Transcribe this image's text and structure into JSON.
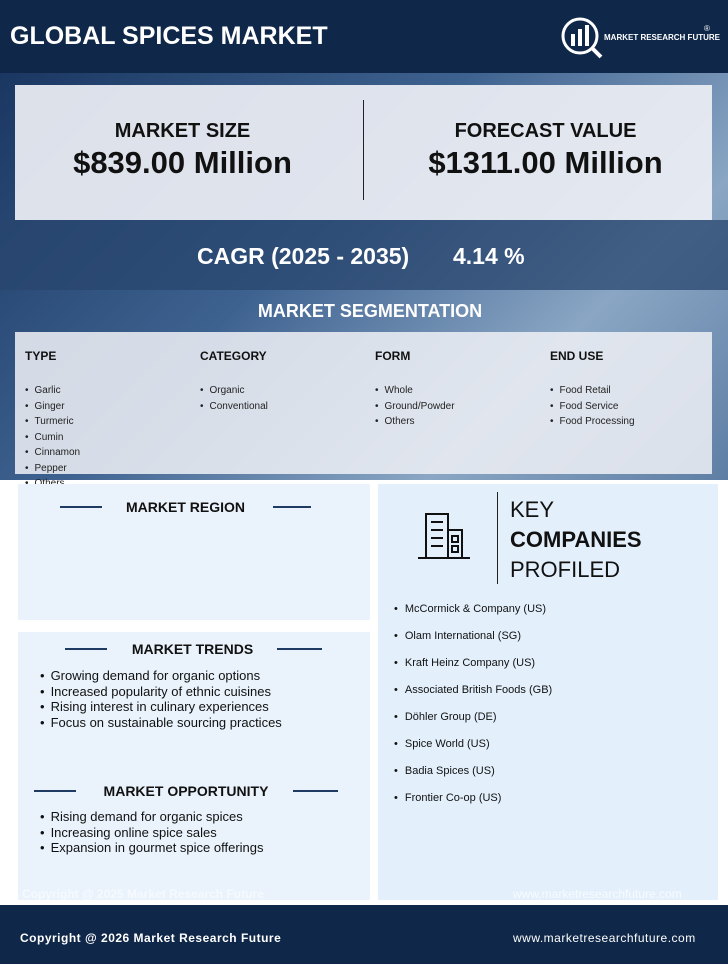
{
  "header": {
    "title": "GLOBAL SPICES MARKET",
    "logo": "MARKET RESEARCH FUTURE",
    "logo_mark": "®"
  },
  "market_size": {
    "label": "MARKET SIZE",
    "value": "$839.00 Million"
  },
  "forecast": {
    "label": "FORECAST VALUE",
    "value": "$1311.00 Million"
  },
  "cagr": {
    "label": "CAGR (2025 - 2035)",
    "value": "4.14 %"
  },
  "segmentation": {
    "title": "MARKET SEGMENTATION",
    "columns": [
      {
        "heading": "TYPE",
        "items": [
          "Garlic",
          "Ginger",
          "Turmeric",
          "Cumin",
          "Cinnamon",
          "Pepper",
          "Others"
        ]
      },
      {
        "heading": "CATEGORY",
        "items": [
          "Organic",
          "Conventional"
        ]
      },
      {
        "heading": "FORM",
        "items": [
          "Whole",
          "Ground/Powder",
          "Others"
        ]
      },
      {
        "heading": "END USE",
        "items": [
          "Food Retail",
          "Food Service",
          "Food Processing"
        ]
      }
    ]
  },
  "region": {
    "title": "MARKET REGION"
  },
  "trends": {
    "title": "MARKET TRENDS",
    "items": [
      "Growing demand for organic options",
      "Increased popularity of ethnic cuisines",
      "Rising interest in culinary experiences",
      "Focus on sustainable sourcing practices"
    ]
  },
  "opportunity": {
    "title": "MARKET OPPORTUNITY",
    "items": [
      "Rising demand for organic spices",
      "Increasing online spice sales",
      "Expansion in gourmet spice offerings"
    ]
  },
  "companies": {
    "title": [
      "KEY",
      "COMPANIES",
      "PROFILED"
    ],
    "items": [
      "McCormick & Company (US)",
      "Olam International (SG)",
      "Kraft Heinz Company (US)",
      "Associated British Foods (GB)",
      "Döhler Group (DE)",
      "Spice World (US)",
      "Badia Spices (US)",
      "Frontier Co-op (US)"
    ]
  },
  "watermark": {
    "copyright": "Copyright @ 2025 Market Research Future",
    "website": "www.marketresearchfuture.com"
  },
  "footer": {
    "copyright": "Copyright @ 2026 Market Research Future",
    "website": "www.marketresearchfuture.com"
  }
}
